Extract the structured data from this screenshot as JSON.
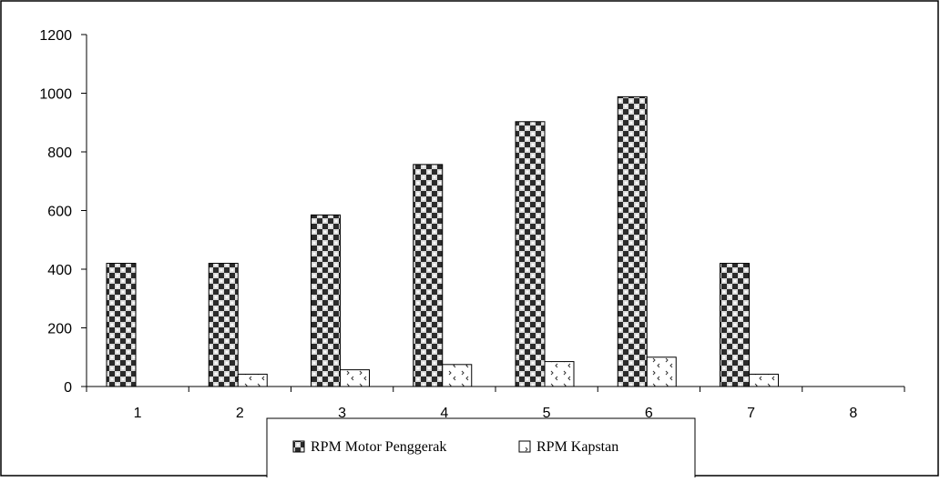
{
  "chart_data": {
    "type": "bar",
    "categories": [
      "1",
      "2",
      "3",
      "4",
      "5",
      "6",
      "7",
      "8"
    ],
    "series": [
      {
        "name": "RPM Motor Penggerak",
        "values": [
          420,
          420,
          585,
          757,
          903,
          988,
          420,
          0
        ],
        "pattern": "checker"
      },
      {
        "name": "RPM Kapstan",
        "values": [
          0,
          42,
          57,
          75,
          85,
          100,
          42,
          0
        ],
        "pattern": "dots"
      }
    ],
    "ylim": [
      0,
      1200
    ],
    "yticks": [
      "0",
      "200",
      "400",
      "600",
      "800",
      "1000",
      "1200"
    ],
    "grid": false,
    "legend_position": "bottom",
    "colors": {
      "bar_dark": "#3a3a3a",
      "bar_light": "#ffffff",
      "axis": "#000000"
    }
  }
}
